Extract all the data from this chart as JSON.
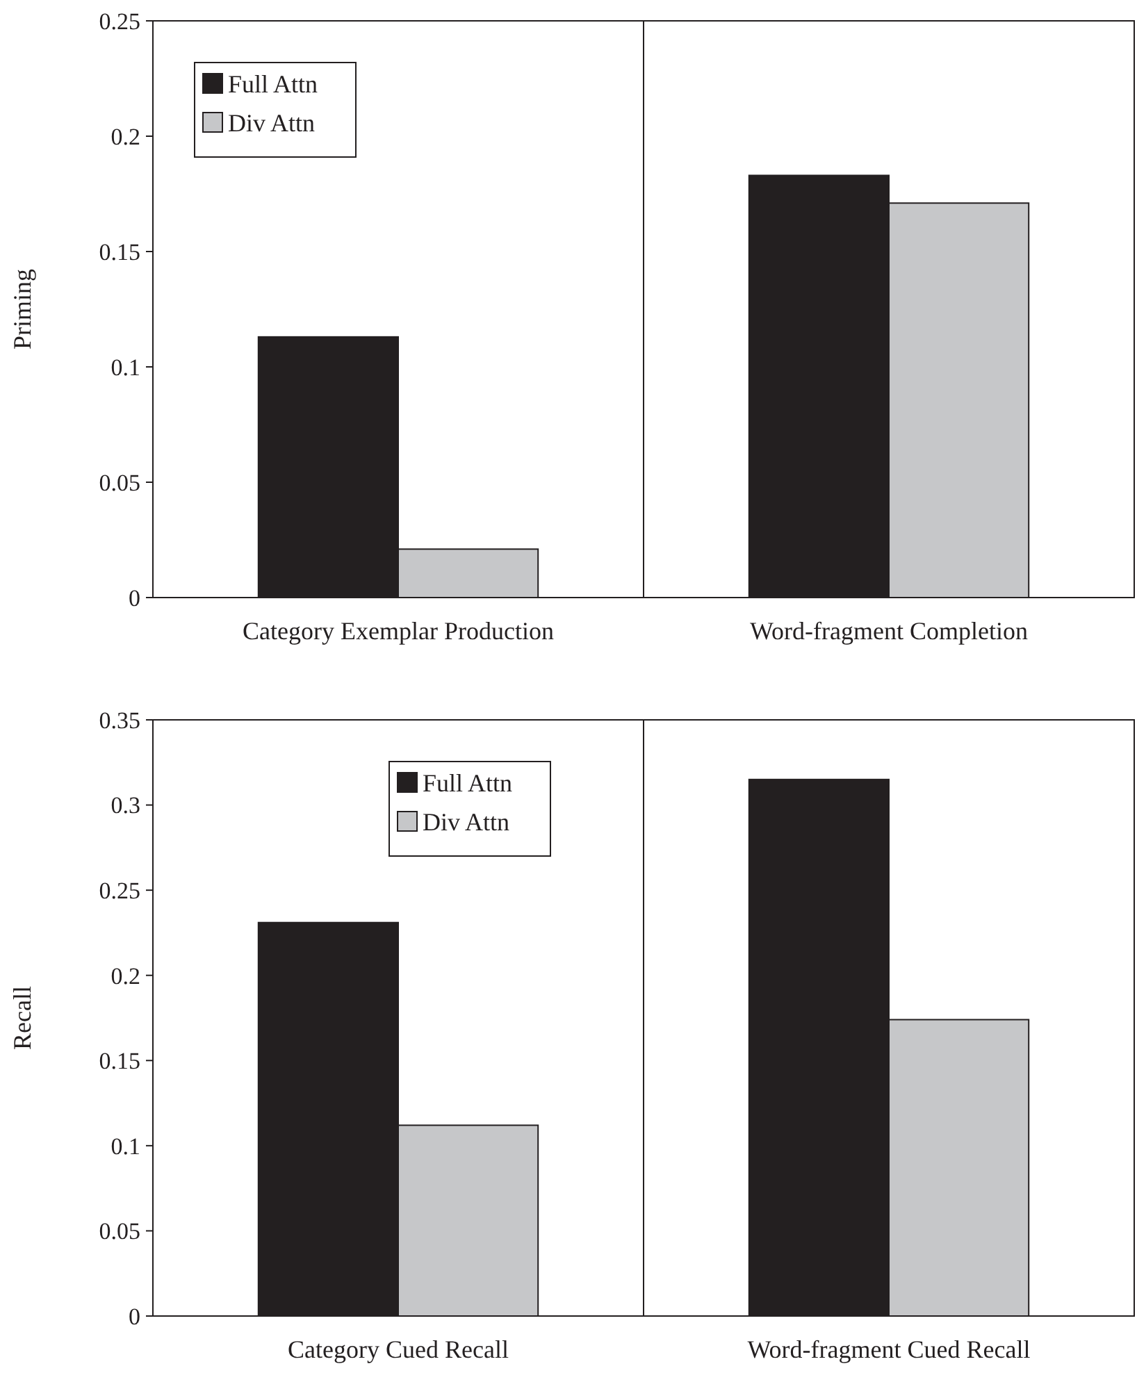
{
  "chart_data": [
    {
      "type": "bar",
      "ylabel": "Priming",
      "categories": [
        "Category Exemplar Production",
        "Word-fragment Completion"
      ],
      "series": [
        {
          "name": "Full Attn",
          "color": "#231f20",
          "values": [
            0.113,
            0.183
          ]
        },
        {
          "name": "Div Attn",
          "color": "#c6c7c9",
          "values": [
            0.021,
            0.171
          ]
        }
      ],
      "ylim": [
        0,
        0.25
      ],
      "yticks": [
        0,
        0.05,
        0.1,
        0.15,
        0.2,
        0.25
      ],
      "legend": "top left",
      "grid": false
    },
    {
      "type": "bar",
      "ylabel": "Recall",
      "categories": [
        "Category Cued Recall",
        "Word-fragment Cued Recall"
      ],
      "series": [
        {
          "name": "Full Attn",
          "color": "#231f20",
          "values": [
            0.231,
            0.315
          ]
        },
        {
          "name": "Div Attn",
          "color": "#c6c7c9",
          "values": [
            0.112,
            0.174
          ]
        }
      ],
      "ylim": [
        0,
        0.35
      ],
      "yticks": [
        0,
        0.05,
        0.1,
        0.15,
        0.2,
        0.25,
        0.3,
        0.35
      ],
      "legend": "top",
      "grid": false
    }
  ]
}
